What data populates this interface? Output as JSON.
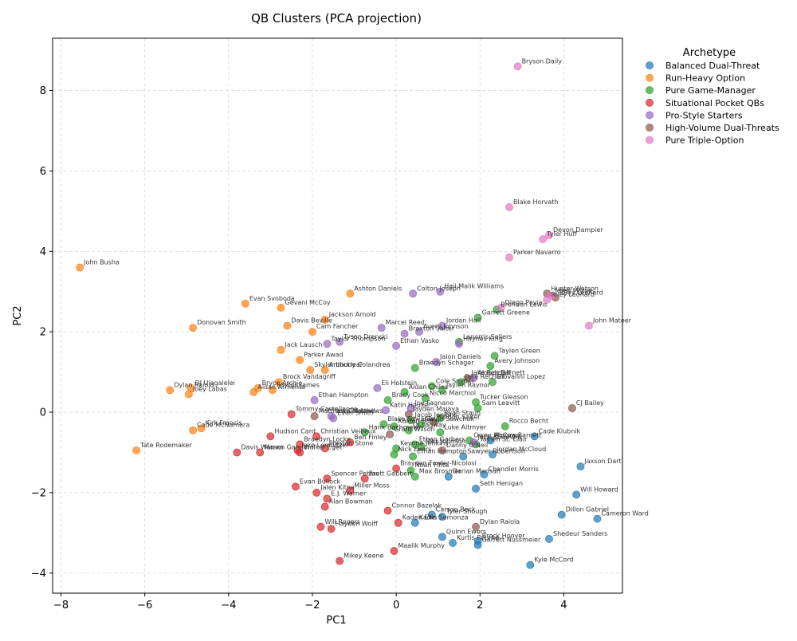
{
  "chart_data": {
    "type": "scatter",
    "title": "QB Clusters (PCA projection)",
    "xlabel": "PC1",
    "ylabel": "PC2",
    "xlim": [
      -8.2,
      5.4
    ],
    "ylim": [
      -4.5,
      9.3
    ],
    "xticks": [
      -8,
      -6,
      -4,
      -2,
      0,
      2,
      4
    ],
    "yticks": [
      -4,
      -2,
      0,
      2,
      4,
      6,
      8
    ],
    "xtick_labels": [
      "−8",
      "−6",
      "−4",
      "−2",
      "0",
      "2",
      "4"
    ],
    "ytick_labels": [
      "−4",
      "−2",
      "0",
      "2",
      "4",
      "6",
      "8"
    ],
    "grid": true,
    "legend_title": "Archetype",
    "legend_position": "outside-right",
    "series": [
      {
        "name": "Balanced Dual-Threat",
        "color": "#1f77b4",
        "points": [
          {
            "x": 3.3,
            "y": -0.6,
            "label": "Cade Klubnik"
          },
          {
            "x": 4.4,
            "y": -1.35,
            "label": "Jaxson Dart"
          },
          {
            "x": 4.3,
            "y": -2.05,
            "label": "Will Howard"
          },
          {
            "x": 3.95,
            "y": -2.55,
            "label": "Dillon Gabriel"
          },
          {
            "x": 4.8,
            "y": -2.65,
            "label": "Cameron Ward"
          },
          {
            "x": 3.65,
            "y": -3.15,
            "label": "Shedeur Sanders"
          },
          {
            "x": 3.2,
            "y": -3.8,
            "label": "Kyle McCord"
          },
          {
            "x": 2.3,
            "y": -1.05,
            "label": "Jordan McCloud"
          },
          {
            "x": 2.1,
            "y": -1.55,
            "label": "Chandler Morris"
          },
          {
            "x": 1.25,
            "y": -1.6,
            "label": "Darian Mensah"
          },
          {
            "x": 1.9,
            "y": -1.9,
            "label": "Seth Henigan"
          },
          {
            "x": 1.6,
            "y": -1.1,
            "label": "Sawyer Robertson"
          },
          {
            "x": 1.1,
            "y": -3.1,
            "label": "Quinn Ewers"
          },
          {
            "x": 1.35,
            "y": -3.25,
            "label": "Kurtis Rourke"
          },
          {
            "x": 1.95,
            "y": -3.2,
            "label": "Brock Hoover"
          },
          {
            "x": 1.95,
            "y": -3.3,
            "label": "Garrett Nussmeier"
          },
          {
            "x": 0.85,
            "y": -2.55,
            "label": "Carson Beck"
          },
          {
            "x": 1.1,
            "y": -2.6,
            "label": "Tyler Shough"
          },
          {
            "x": 0.45,
            "y": -2.75,
            "label": "Kadin Semonza"
          },
          {
            "x": 2.25,
            "y": -0.7,
            "label": "Alonza Barnett"
          }
        ]
      },
      {
        "name": "Run-Heavy Option",
        "color": "#ff7f0e",
        "points": [
          {
            "x": -7.55,
            "y": 3.6,
            "label": "John Busha"
          },
          {
            "x": -6.2,
            "y": -0.95,
            "label": "Tate Rodemaker"
          },
          {
            "x": -4.85,
            "y": 2.1,
            "label": "Donovan Smith"
          },
          {
            "x": -5.4,
            "y": 0.55,
            "label": "Dylan Raiola"
          },
          {
            "x": -4.95,
            "y": 0.45,
            "label": "Joey Labas"
          },
          {
            "x": -4.9,
            "y": 0.6,
            "label": "DJ Uiagalelei"
          },
          {
            "x": -4.85,
            "y": -0.45,
            "label": "Cade McNamara"
          },
          {
            "x": -4.65,
            "y": -0.4,
            "label": "Kirk Francis"
          },
          {
            "x": -3.6,
            "y": 2.7,
            "label": "Evan Svoboda"
          },
          {
            "x": -2.75,
            "y": 2.6,
            "label": "Gevani McCoy"
          },
          {
            "x": -2.6,
            "y": 2.15,
            "label": "Davis Beville"
          },
          {
            "x": -1.7,
            "y": 2.3,
            "label": "Jackson Arnold"
          },
          {
            "x": -2.0,
            "y": 2.0,
            "label": "Cam Fancher"
          },
          {
            "x": -1.1,
            "y": 2.95,
            "label": "Ashton Daniels"
          },
          {
            "x": -2.75,
            "y": 1.55,
            "label": "Jack Lausch"
          },
          {
            "x": -2.3,
            "y": 1.3,
            "label": "Parker Awad"
          },
          {
            "x": -2.05,
            "y": 1.05,
            "label": "Skyler Locklear"
          },
          {
            "x": -1.7,
            "y": 1.05,
            "label": "Anthony Colandrea"
          },
          {
            "x": -2.8,
            "y": 0.75,
            "label": "Brock Vandagriff"
          },
          {
            "x": -3.3,
            "y": 0.6,
            "label": "Bryce Archie"
          },
          {
            "x": -3.4,
            "y": 0.5,
            "label": "Aidan Armenta"
          },
          {
            "x": -2.95,
            "y": 0.55,
            "label": "Layton James"
          }
        ]
      },
      {
        "name": "Pure Game-Manager",
        "color": "#2ca02c",
        "points": [
          {
            "x": 1.95,
            "y": 2.35,
            "label": "Garrett Greene"
          },
          {
            "x": 2.4,
            "y": 2.55,
            "label": "Brendon Lewis"
          },
          {
            "x": 1.5,
            "y": 1.75,
            "label": "Lanorris Sellers"
          },
          {
            "x": 2.35,
            "y": 1.4,
            "label": "Taylen Green"
          },
          {
            "x": 2.25,
            "y": 1.15,
            "label": "Avery Johnson"
          },
          {
            "x": 2.3,
            "y": 0.75,
            "label": "Giovanni Lopez"
          },
          {
            "x": 1.9,
            "y": 0.25,
            "label": "Tucker Gleason"
          },
          {
            "x": 1.95,
            "y": 0.1,
            "label": "Sam Leavitt"
          },
          {
            "x": 2.6,
            "y": -0.35,
            "label": "Rocco Becht"
          },
          {
            "x": 1.55,
            "y": 0.75,
            "label": "Jake Retzlaff"
          },
          {
            "x": 0.85,
            "y": 0.65,
            "label": "Cole Snyder"
          },
          {
            "x": 1.1,
            "y": 0.55,
            "label": "Jaylen Raynor"
          },
          {
            "x": 0.45,
            "y": 1.1,
            "label": "Braedyn Schager"
          },
          {
            "x": 0.2,
            "y": 0.5,
            "label": "Aidan Chiles"
          },
          {
            "x": -0.2,
            "y": 0.3,
            "label": "Brady Cook"
          },
          {
            "x": 0.7,
            "y": 0.35,
            "label": "Nicco Marchiol"
          },
          {
            "x": 0.35,
            "y": -0.2,
            "label": "Jacob Jenkins"
          },
          {
            "x": 0.6,
            "y": -0.3,
            "label": "Gavin Sawchuk"
          },
          {
            "x": -0.75,
            "y": -0.5,
            "label": "Hank Bachmeier"
          },
          {
            "x": -0.3,
            "y": -0.3,
            "label": "Blake Edwards"
          },
          {
            "x": 0.3,
            "y": -0.45,
            "label": "DJ Lagway"
          },
          {
            "x": 1.05,
            "y": -0.5,
            "label": "Luke Altmyer"
          },
          {
            "x": 1.05,
            "y": -0.15,
            "label": "Ryan Staub"
          },
          {
            "x": 1.75,
            "y": -0.7,
            "label": "Owen McCown"
          },
          {
            "x": 1.9,
            "y": -0.8,
            "label": "Tavien St. Clair"
          },
          {
            "x": 0.45,
            "y": -0.8,
            "label": "Ethan Garbers"
          },
          {
            "x": 0.6,
            "y": -0.85,
            "label": "Max Johnson"
          },
          {
            "x": 0.0,
            "y": -0.9,
            "label": "Keyone Jenkins"
          },
          {
            "x": -0.05,
            "y": -1.05,
            "label": "Nick Evers"
          },
          {
            "x": 0.4,
            "y": -1.1,
            "label": "Ethan Hampton"
          },
          {
            "x": 0.35,
            "y": -1.45,
            "label": "Noah Fifita"
          },
          {
            "x": 0.45,
            "y": -1.6,
            "label": "Max Brosmer"
          },
          {
            "x": -0.05,
            "y": -0.35,
            "label": "Kaidon Salter"
          }
        ]
      },
      {
        "name": "Situational Pocket QBs",
        "color": "#d62728",
        "points": [
          {
            "x": -2.5,
            "y": -0.05,
            "label": "Tommy Castellanos"
          },
          {
            "x": -3.0,
            "y": -0.6,
            "label": "Hudson Card"
          },
          {
            "x": -1.9,
            "y": -0.6,
            "label": "Christian Veilleux"
          },
          {
            "x": -1.1,
            "y": -0.75,
            "label": "Ben Finley"
          },
          {
            "x": -2.3,
            "y": -0.8,
            "label": "Braedyn Locke"
          },
          {
            "x": -2.35,
            "y": -0.95,
            "label": "Jake Lemnitzer"
          },
          {
            "x": -1.7,
            "y": -0.9,
            "label": "Preston Stone"
          },
          {
            "x": -3.8,
            "y": -1.0,
            "label": "Davis Warren"
          },
          {
            "x": -3.25,
            "y": -1.0,
            "label": "Mason Garcia"
          },
          {
            "x": -2.3,
            "y": -1.0,
            "label": "Walker Eget"
          },
          {
            "x": -1.65,
            "y": -1.65,
            "label": "Spencer Petras"
          },
          {
            "x": -2.4,
            "y": -1.85,
            "label": "Evan Bullock"
          },
          {
            "x": -0.75,
            "y": -1.65,
            "label": "Brett Gabbert"
          },
          {
            "x": -1.1,
            "y": -1.95,
            "label": "Miller Moss"
          },
          {
            "x": -1.9,
            "y": -2.0,
            "label": "Jalen Kitna"
          },
          {
            "x": -1.65,
            "y": -2.15,
            "label": "E.J. Warner"
          },
          {
            "x": -1.7,
            "y": -2.35,
            "label": "Alan Bowman"
          },
          {
            "x": -0.2,
            "y": -2.45,
            "label": "Connor Bazelak"
          },
          {
            "x": 0.0,
            "y": -1.4,
            "label": "Brayden Fowler-Nicolosi"
          },
          {
            "x": 0.05,
            "y": -2.75,
            "label": "Kaden Ellis"
          },
          {
            "x": -1.8,
            "y": -2.85,
            "label": "Will Rogers"
          },
          {
            "x": -1.55,
            "y": -2.9,
            "label": "Hayden Wolff"
          },
          {
            "x": -0.05,
            "y": -3.45,
            "label": "Maalik Murphy"
          },
          {
            "x": -1.35,
            "y": -3.7,
            "label": "Mikey Keene"
          }
        ]
      },
      {
        "name": "Pro-Style Starters",
        "color": "#9467bd",
        "points": [
          {
            "x": 0.4,
            "y": 2.95,
            "label": "Colton Joseph"
          },
          {
            "x": 1.05,
            "y": 3.0,
            "label": "Haji Malik Williams"
          },
          {
            "x": -0.35,
            "y": 2.1,
            "label": "Marcel Reed"
          },
          {
            "x": 0.2,
            "y": 1.95,
            "label": "Braxton Salter"
          },
          {
            "x": 0.55,
            "y": 2.0,
            "label": "Avery Johnson"
          },
          {
            "x": 1.1,
            "y": 2.15,
            "label": "Jordan Hall"
          },
          {
            "x": 1.5,
            "y": 1.7,
            "label": "Haynes King"
          },
          {
            "x": -1.65,
            "y": 1.7,
            "label": "Taylor Thompson"
          },
          {
            "x": -1.35,
            "y": 1.75,
            "label": "Tyson Drenski"
          },
          {
            "x": 0.0,
            "y": 1.65,
            "label": "Ethan Vasko"
          },
          {
            "x": 0.95,
            "y": 1.25,
            "label": "Jalon Daniels"
          },
          {
            "x": 1.85,
            "y": 0.85,
            "label": "Alonza Barnett"
          },
          {
            "x": -0.45,
            "y": 0.6,
            "label": "Eli Holstein"
          },
          {
            "x": -1.95,
            "y": 0.3,
            "label": "Ethan Hampton"
          },
          {
            "x": -1.55,
            "y": -0.1,
            "label": "Luke Matthews"
          },
          {
            "x": -1.5,
            "y": -0.15,
            "label": "Evan Smith"
          },
          {
            "x": -0.25,
            "y": 0.05,
            "label": "Katin Houser"
          },
          {
            "x": 0.35,
            "y": 0.1,
            "label": "Joe Fagnano"
          },
          {
            "x": 1.85,
            "y": -0.75,
            "label": "Jack Abraham"
          }
        ]
      },
      {
        "name": "High-Volume Dual-Threats",
        "color": "#8c564b",
        "points": [
          {
            "x": 3.6,
            "y": 2.95,
            "label": "Hunter Watson"
          },
          {
            "x": 3.8,
            "y": 2.85,
            "label": "Riley Leonard"
          },
          {
            "x": 4.2,
            "y": 0.1,
            "label": "CJ Bailey"
          },
          {
            "x": 1.7,
            "y": 0.85,
            "label": "Jake Retzlaff"
          },
          {
            "x": -1.95,
            "y": -0.1,
            "label": "Matthew Caldwell"
          },
          {
            "x": 0.3,
            "y": -0.05,
            "label": "Jayden Maiava"
          },
          {
            "x": 0.9,
            "y": -0.25,
            "label": "Kaidon Salter"
          },
          {
            "x": -0.15,
            "y": -0.55,
            "label": "Grant Wilson"
          },
          {
            "x": 1.1,
            "y": -0.95,
            "label": "Danny O'Neil"
          },
          {
            "x": 1.9,
            "y": -2.85,
            "label": "Dylan Raiola"
          }
        ]
      },
      {
        "name": "Pure Triple-Option",
        "color": "#e377c2",
        "points": [
          {
            "x": 2.9,
            "y": 8.6,
            "label": "Bryson Daily"
          },
          {
            "x": 2.7,
            "y": 5.1,
            "label": "Blake Horvath"
          },
          {
            "x": 3.65,
            "y": 4.4,
            "label": "Devon Dampier"
          },
          {
            "x": 3.5,
            "y": 4.3,
            "label": "Tyler Huff"
          },
          {
            "x": 2.7,
            "y": 3.85,
            "label": "Parker Navarro"
          },
          {
            "x": 3.7,
            "y": 2.9,
            "label": "Jalen Milroe"
          },
          {
            "x": 3.6,
            "y": 2.8,
            "label": "Riley Leonard"
          },
          {
            "x": 2.5,
            "y": 2.6,
            "label": "Diego Pavia"
          },
          {
            "x": 4.6,
            "y": 2.15,
            "label": "John Mateer"
          }
        ]
      }
    ]
  }
}
